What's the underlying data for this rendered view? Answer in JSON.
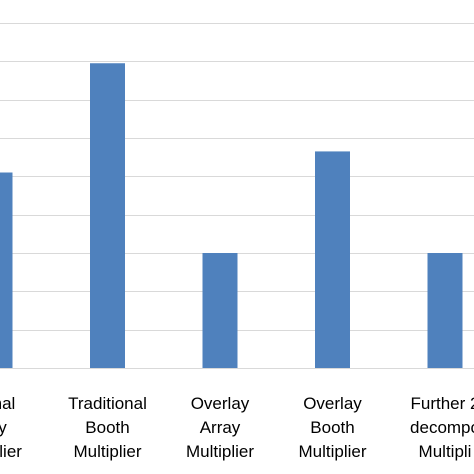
{
  "chart_data": {
    "type": "bar",
    "categories": [
      [
        "tional",
        "ray",
        "ultiplier"
      ],
      [
        "Traditional",
        "Booth",
        "Multiplier"
      ],
      [
        "Overlay",
        "Array",
        "Multiplier"
      ],
      [
        "Overlay",
        "Booth",
        "Multiplier"
      ],
      [
        "Further 2",
        "decompo",
        "Multipli"
      ]
    ],
    "values": [
      5.1,
      7.95,
      3.0,
      5.65,
      3.0
    ],
    "ylim": [
      0,
      9
    ],
    "grid": true,
    "bar_color": "#4f81bd",
    "grid_color": "#d9d9d9"
  }
}
